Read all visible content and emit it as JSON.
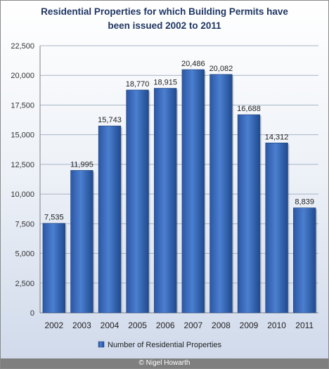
{
  "chart_data": {
    "type": "bar",
    "title_line1": "Residential  Properties for which Building Permits have",
    "title_line2": "been issued 2002 to 2011",
    "categories": [
      "2002",
      "2003",
      "2004",
      "2005",
      "2006",
      "2007",
      "2008",
      "2009",
      "2010",
      "2011"
    ],
    "series": [
      {
        "name": "Number of Residential Properties",
        "values": [
          7535,
          11995,
          15743,
          18770,
          18915,
          20486,
          20082,
          16688,
          14312,
          8839
        ],
        "value_labels": [
          "7,535",
          "11,995",
          "15,743",
          "18,770",
          "18,915",
          "20,486",
          "20,082",
          "16,688",
          "14,312",
          "8,839"
        ]
      }
    ],
    "ylim": [
      0,
      22500
    ],
    "y_ticks": [
      0,
      2500,
      5000,
      7500,
      10000,
      12500,
      15000,
      17500,
      20000,
      22500
    ],
    "y_tick_labels": [
      "0",
      "2,500",
      "5,000",
      "7,500",
      "10,000",
      "12,500",
      "15,000",
      "17,500",
      "20,000",
      "22,500"
    ],
    "gridlines": true,
    "legend_position": "bottom",
    "bar_color": "#3f6fbf"
  },
  "footer_text": "© Nigel Howarth"
}
